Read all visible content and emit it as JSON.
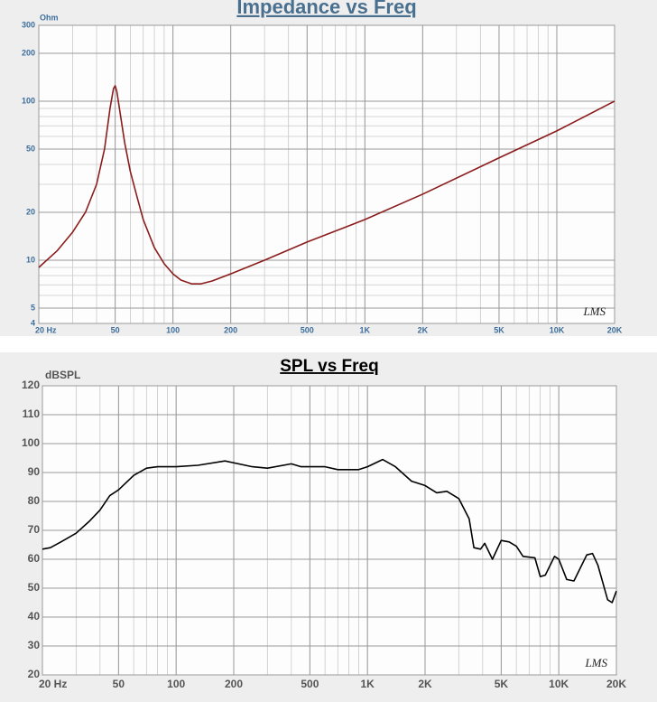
{
  "chart_data": [
    {
      "type": "line",
      "title": "Impedance vs Freq",
      "y_label": "Ohm",
      "watermark": "LMS",
      "xscale": "log",
      "yscale": "log",
      "grid": true,
      "color": "#8b1c1c",
      "xlim": [
        20,
        20000
      ],
      "ylim": [
        4,
        300
      ],
      "xticks": [
        {
          "value": 20,
          "label": "20 Hz"
        },
        50,
        100,
        200,
        500,
        {
          "value": 1000,
          "label": "1K"
        },
        {
          "value": 2000,
          "label": "2K"
        },
        {
          "value": 5000,
          "label": "5K"
        },
        {
          "value": 10000,
          "label": "10K"
        },
        {
          "value": 20000,
          "label": "20K"
        }
      ],
      "yticks": [
        4,
        5,
        10,
        20,
        50,
        100,
        200,
        300
      ],
      "x": [
        20,
        25,
        30,
        35,
        40,
        44,
        47,
        49,
        50,
        51,
        53,
        56,
        60,
        65,
        70,
        80,
        90,
        100,
        110,
        125,
        140,
        160,
        200,
        300,
        500,
        1000,
        2000,
        5000,
        10000,
        20000
      ],
      "values": [
        9,
        11.5,
        15,
        20,
        30,
        50,
        90,
        120,
        125,
        115,
        85,
        55,
        36,
        25,
        18,
        12,
        9.5,
        8.2,
        7.5,
        7.1,
        7.1,
        7.4,
        8.2,
        10,
        13,
        18,
        26,
        44,
        65,
        100
      ]
    },
    {
      "type": "line",
      "title": "SPL vs Freq",
      "y_label": "dBSPL",
      "watermark": "LMS",
      "xscale": "log",
      "yscale": "linear",
      "grid": true,
      "color": "#000000",
      "xlim": [
        20,
        20000
      ],
      "ylim": [
        20,
        120
      ],
      "xticks": [
        {
          "value": 20,
          "label": "20 Hz"
        },
        50,
        100,
        200,
        500,
        {
          "value": 1000,
          "label": "1K"
        },
        {
          "value": 2000,
          "label": "2K"
        },
        {
          "value": 5000,
          "label": "5K"
        },
        {
          "value": 10000,
          "label": "10K"
        },
        {
          "value": 20000,
          "label": "20K"
        }
      ],
      "yticks": [
        20,
        30,
        40,
        50,
        60,
        70,
        80,
        90,
        100,
        110,
        120
      ],
      "x": [
        20,
        22,
        25,
        30,
        35,
        40,
        45,
        50,
        60,
        70,
        80,
        100,
        130,
        180,
        250,
        300,
        400,
        450,
        600,
        700,
        900,
        1000,
        1200,
        1400,
        1700,
        2000,
        2300,
        2600,
        3000,
        3400,
        3600,
        3900,
        4100,
        4500,
        5000,
        5500,
        6000,
        6500,
        7500,
        8000,
        8500,
        9500,
        10000,
        11000,
        12000,
        14000,
        15000,
        16000,
        18000,
        19000,
        20000
      ],
      "values": [
        63.5,
        64,
        66,
        69,
        73,
        77,
        82,
        84,
        89,
        91.5,
        92,
        92,
        92.5,
        94,
        92,
        91.5,
        93,
        92,
        92,
        91,
        91,
        92,
        94.5,
        92,
        87,
        85.5,
        83,
        83.5,
        81,
        74,
        64,
        63.5,
        65.5,
        60,
        66.5,
        66,
        64.5,
        61,
        60.5,
        54,
        54.5,
        61,
        60,
        53,
        52.5,
        61.5,
        62,
        58,
        46,
        45,
        49
      ]
    }
  ]
}
